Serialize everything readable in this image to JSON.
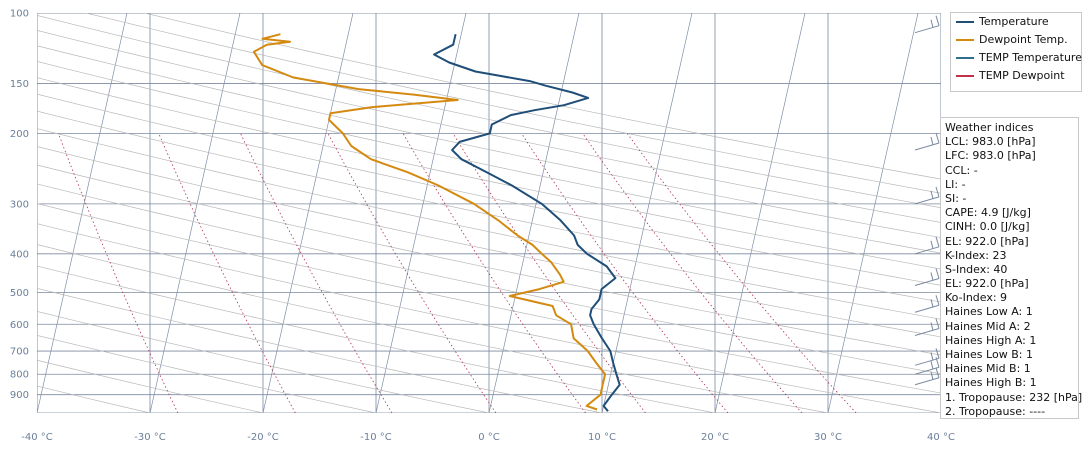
{
  "chart_data": {
    "type": "line",
    "title": "",
    "xlabel": "",
    "ylabel": "",
    "x_unit": "°C",
    "y_unit": "hPa",
    "x_ticks": [
      "-40 °C",
      "-30 °C",
      "-20 °C",
      "-10 °C",
      "0 °C",
      "10 °C",
      "20 °C",
      "30 °C",
      "40 °C"
    ],
    "y_ticks": [
      "100",
      "150",
      "200",
      "300",
      "400",
      "500",
      "600",
      "700",
      "800",
      "900"
    ],
    "xlim": [
      -40,
      40
    ],
    "ylim": [
      1000,
      100
    ],
    "y_scale": "log",
    "skew": true,
    "grid": true,
    "legend_position": "top-right",
    "series": [
      {
        "name": "Temperature",
        "color": "#1f4e79",
        "points": [
          [
            10.5,
            990
          ],
          [
            10.0,
            960
          ],
          [
            10.5,
            900
          ],
          [
            11.0,
            850
          ],
          [
            10.5,
            800
          ],
          [
            10.0,
            750
          ],
          [
            9.5,
            700
          ],
          [
            8.5,
            650
          ],
          [
            7.5,
            600
          ],
          [
            7.0,
            570
          ],
          [
            7.0,
            550
          ],
          [
            7.5,
            520
          ],
          [
            7.5,
            490
          ],
          [
            8.5,
            460
          ],
          [
            7.5,
            430
          ],
          [
            5.5,
            400
          ],
          [
            4.5,
            380
          ],
          [
            4.0,
            360
          ],
          [
            2.5,
            330
          ],
          [
            0.5,
            300
          ],
          [
            -2.5,
            270
          ],
          [
            -5.0,
            250
          ],
          [
            -7.5,
            232
          ],
          [
            -8.5,
            220
          ],
          [
            -8.0,
            210
          ],
          [
            -5.5,
            200
          ],
          [
            -5.5,
            190
          ],
          [
            -4.0,
            180
          ],
          [
            -2.0,
            175
          ],
          [
            0.5,
            170
          ],
          [
            2.5,
            163
          ],
          [
            1.0,
            158
          ],
          [
            -1.5,
            152
          ],
          [
            -3.0,
            148
          ],
          [
            -8.0,
            140
          ],
          [
            -10.5,
            133
          ],
          [
            -12.0,
            127
          ],
          [
            -10.5,
            120
          ],
          [
            -10.5,
            113
          ]
        ]
      },
      {
        "name": "Dewpoint Temp.",
        "color": "#d48a10",
        "points": [
          [
            9.5,
            980
          ],
          [
            8.5,
            960
          ],
          [
            9.5,
            900
          ],
          [
            9.5,
            850
          ],
          [
            9.5,
            800
          ],
          [
            8.5,
            750
          ],
          [
            7.5,
            700
          ],
          [
            6.0,
            650
          ],
          [
            5.5,
            600
          ],
          [
            4.0,
            570
          ],
          [
            3.5,
            540
          ],
          [
            -0.5,
            510
          ],
          [
            2.0,
            490
          ],
          [
            4.0,
            470
          ],
          [
            3.5,
            450
          ],
          [
            2.5,
            420
          ],
          [
            1.5,
            400
          ],
          [
            0.5,
            380
          ],
          [
            -1.0,
            360
          ],
          [
            -3.0,
            330
          ],
          [
            -5.5,
            300
          ],
          [
            -9.0,
            270
          ],
          [
            -12.0,
            250
          ],
          [
            -15.5,
            232
          ],
          [
            -17.5,
            215
          ],
          [
            -18.5,
            200
          ],
          [
            -20.0,
            185
          ],
          [
            -20.0,
            178
          ],
          [
            -16.5,
            172
          ],
          [
            -9.0,
            165
          ],
          [
            -13.0,
            160
          ],
          [
            -18.0,
            155
          ],
          [
            -24.0,
            145
          ],
          [
            -27.0,
            135
          ],
          [
            -28.0,
            125
          ],
          [
            -27.0,
            120
          ],
          [
            -25.0,
            118
          ],
          [
            -27.5,
            116
          ],
          [
            -26.0,
            113
          ]
        ]
      },
      {
        "name": "TEMP Temperature",
        "color": "#2e6e8e",
        "points": []
      },
      {
        "name": "TEMP Dewpoint",
        "color": "#c0304a",
        "points": []
      }
    ],
    "wind_barb_levels": [
      112,
      220,
      300,
      400,
      480,
      560,
      640,
      760,
      800,
      850
    ]
  },
  "indices": {
    "title": "Weather indices",
    "rows": [
      "LCL: 983.0 [hPa]",
      "LFC: 983.0 [hPa]",
      "CCL: -",
      "LI: -",
      "SI: -",
      "CAPE: 4.9 [J/kg]",
      "CINH: 0.0 [J/kg]",
      "EL: 922.0 [hPa]",
      "K-Index: 23",
      "S-Index: 40",
      "EL: 922.0 [hPa]",
      "Ko-Index: 9",
      "Haines Low A: 1",
      "Haines Mid A: 2",
      "Haines High A: 1",
      "Haines Low B: 1",
      "Haines Mid B: 1",
      "Haines High B: 1",
      "1. Tropopause: 232 [hPa]",
      "2. Tropopause: ----"
    ]
  }
}
